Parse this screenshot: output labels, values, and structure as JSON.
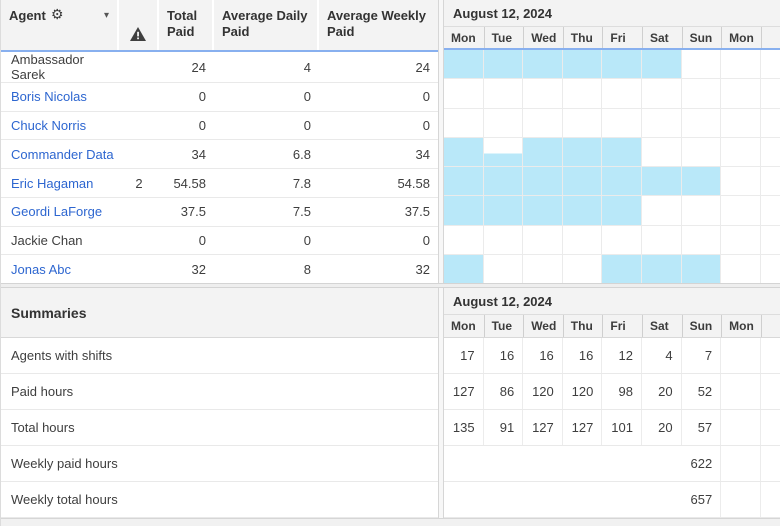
{
  "colors": {
    "highlight_cell": "#b9e8f9",
    "header_rule_blue": "#88b0ef",
    "link_blue": "#2d66d0",
    "header_bg": "#f3f3f3"
  },
  "agent_table": {
    "header": {
      "agent_label": "Agent",
      "gear_icon": "gear-icon",
      "caret_icon": "chevron-down-icon",
      "warning_icon": "warning-triangle-icon",
      "total_paid_label": "Total Paid",
      "avg_daily_label": "Average Daily Paid",
      "avg_weekly_label": "Average Weekly Paid"
    },
    "rows": [
      {
        "name": "Ambassador Sarek",
        "link": false,
        "warning": "",
        "total_paid": "24",
        "avg_daily_paid": "4",
        "avg_weekly_paid": "24",
        "days": [
          "full",
          "full",
          "full",
          "full",
          "full",
          "full",
          "",
          ""
        ]
      },
      {
        "name": "Boris Nicolas",
        "link": true,
        "warning": "",
        "total_paid": "0",
        "avg_daily_paid": "0",
        "avg_weekly_paid": "0",
        "days": [
          "",
          "",
          "",
          "",
          "",
          "",
          "",
          ""
        ]
      },
      {
        "name": "Chuck Norris",
        "link": true,
        "warning": "",
        "total_paid": "0",
        "avg_daily_paid": "0",
        "avg_weekly_paid": "0",
        "days": [
          "",
          "",
          "",
          "",
          "",
          "",
          "",
          ""
        ]
      },
      {
        "name": "Commander Data",
        "link": true,
        "warning": "",
        "total_paid": "34",
        "avg_daily_paid": "6.8",
        "avg_weekly_paid": "34",
        "days": [
          "full",
          "partial",
          "full",
          "full",
          "full",
          "",
          "",
          ""
        ]
      },
      {
        "name": "Eric Hagaman",
        "link": true,
        "warning": "2",
        "total_paid": "54.58",
        "avg_daily_paid": "7.8",
        "avg_weekly_paid": "54.58",
        "days": [
          "full",
          "full",
          "full",
          "full",
          "full",
          "full",
          "full",
          ""
        ]
      },
      {
        "name": "Geordi LaForge",
        "link": true,
        "warning": "",
        "total_paid": "37.5",
        "avg_daily_paid": "7.5",
        "avg_weekly_paid": "37.5",
        "days": [
          "full",
          "full",
          "full",
          "full",
          "full",
          "",
          "",
          ""
        ]
      },
      {
        "name": "Jackie Chan",
        "link": false,
        "warning": "",
        "total_paid": "0",
        "avg_daily_paid": "0",
        "avg_weekly_paid": "0",
        "days": [
          "",
          "",
          "",
          "",
          "",
          "",
          "",
          ""
        ]
      },
      {
        "name": "Jonas Abc",
        "link": true,
        "warning": "",
        "total_paid": "32",
        "avg_daily_paid": "8",
        "avg_weekly_paid": "32",
        "days": [
          "full",
          "",
          "",
          "",
          "full",
          "full",
          "full",
          ""
        ]
      }
    ]
  },
  "calendar": {
    "date_label": "August 12, 2024",
    "days": [
      "Mon",
      "Tue",
      "Wed",
      "Thu",
      "Fri",
      "Sat",
      "Sun",
      "Mon"
    ]
  },
  "summaries": {
    "title": "Summaries",
    "date_label": "August 12, 2024",
    "days": [
      "Mon",
      "Tue",
      "Wed",
      "Thu",
      "Fri",
      "Sat",
      "Sun",
      "Mon"
    ],
    "rows": [
      {
        "label": "Agents with shifts",
        "values": [
          "17",
          "16",
          "16",
          "16",
          "12",
          "4",
          "7",
          ""
        ]
      },
      {
        "label": "Paid hours",
        "values": [
          "127",
          "86",
          "120",
          "120",
          "98",
          "20",
          "52",
          ""
        ]
      },
      {
        "label": "Total hours",
        "values": [
          "135",
          "91",
          "127",
          "127",
          "101",
          "20",
          "57",
          ""
        ]
      }
    ],
    "weekly_rows": [
      {
        "label": "Weekly paid hours",
        "value": "622"
      },
      {
        "label": "Weekly total hours",
        "value": "657"
      }
    ]
  }
}
